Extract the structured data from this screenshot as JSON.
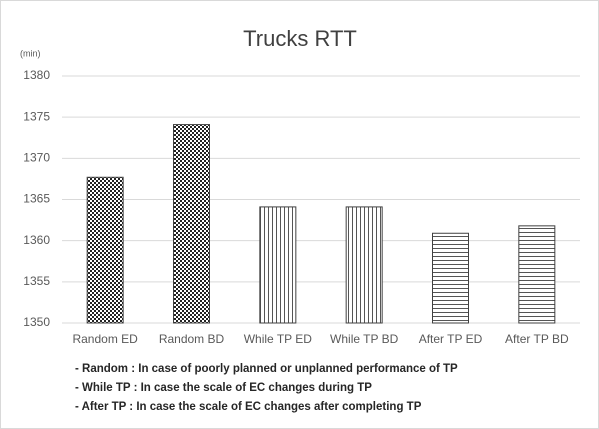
{
  "chart_data": {
    "type": "bar",
    "title": "Trucks RTT",
    "y_unit": "(min)",
    "categories": [
      "Random ED",
      "Random BD",
      "While TP ED",
      "While TP BD",
      "After TP ED",
      "After TP BD"
    ],
    "values": [
      1367.7,
      1374.1,
      1364.1,
      1364.1,
      1360.9,
      1361.8
    ],
    "patterns": [
      "checker",
      "checker",
      "vertical",
      "vertical",
      "horizontal",
      "horizontal"
    ],
    "color": "#404040",
    "ylim": [
      1350,
      1380
    ],
    "yticks": [
      1350,
      1355,
      1360,
      1365,
      1370,
      1375,
      1380
    ],
    "grid": true,
    "notes": [
      "- Random : In case of poorly planned or unplanned  performance of TP",
      "- While TP : In case the scale of EC changes during TP",
      "- After TP : In case the scale of EC changes after completing TP"
    ]
  }
}
